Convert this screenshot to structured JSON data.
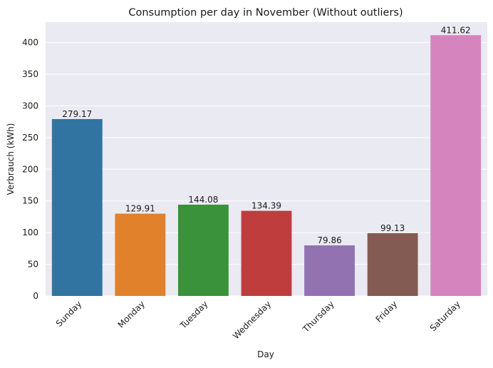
{
  "chart_data": {
    "type": "bar",
    "title": "Consumption per day in November (Without outliers)",
    "xlabel": "Day",
    "ylabel": "Verbrauch (kWh)",
    "categories": [
      "Sunday",
      "Monday",
      "Tuesday",
      "Wednesday",
      "Thursday",
      "Friday",
      "Saturday"
    ],
    "values": [
      279.17,
      129.91,
      144.08,
      134.39,
      79.86,
      99.13,
      411.62
    ],
    "data_labels": [
      "279.17",
      "129.91",
      "144.08",
      "134.39",
      "79.86",
      "99.13",
      "411.62"
    ],
    "colors": [
      "#3274a1",
      "#e1812c",
      "#3a923a",
      "#c03d3e",
      "#9372b2",
      "#845b53",
      "#d684bd"
    ],
    "yticks": [
      0,
      50,
      100,
      150,
      200,
      250,
      300,
      350,
      400
    ],
    "ylim": [
      0,
      432.2
    ],
    "grid": true,
    "plot_background": "#eaeaf2",
    "grid_color": "#ffffff"
  }
}
